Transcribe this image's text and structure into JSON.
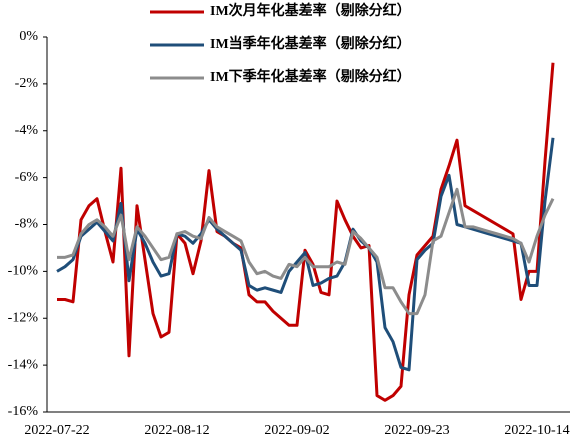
{
  "chart_data": {
    "type": "line",
    "categories": [
      "2022-07-22",
      null,
      null,
      null,
      null,
      null,
      null,
      null,
      null,
      null,
      null,
      null,
      null,
      null,
      null,
      "2022-08-12",
      null,
      null,
      null,
      null,
      null,
      null,
      null,
      null,
      null,
      null,
      null,
      null,
      null,
      null,
      "2022-09-02",
      null,
      null,
      null,
      null,
      null,
      null,
      null,
      null,
      null,
      null,
      null,
      null,
      null,
      null,
      "2022-09-23",
      null,
      null,
      null,
      null,
      null,
      null,
      null,
      null,
      null,
      null,
      null,
      null,
      null,
      null,
      "2022-10-14",
      null,
      null
    ],
    "series": [
      {
        "name": "IM次月年化基差率（剔除分红）",
        "color": "#c00000",
        "values": [
          -11.2,
          -11.2,
          -11.3,
          -7.8,
          -7.2,
          -6.9,
          -8.3,
          -9.6,
          -5.6,
          -13.6,
          -7.2,
          -9.5,
          -11.8,
          -12.8,
          -12.6,
          -8.4,
          -8.8,
          -10.1,
          -8.7,
          -5.7,
          -8.3,
          -8.5,
          -8.8,
          -9.0,
          -11.0,
          -11.3,
          -11.3,
          -11.7,
          -12.0,
          -12.3,
          -12.3,
          -9.1,
          -9.7,
          -10.9,
          -11.0,
          -7.0,
          -7.8,
          -8.5,
          -9.0,
          -8.9,
          -15.3,
          -15.5,
          -15.3,
          -14.9,
          -11.0,
          -9.3,
          -8.9,
          -8.5,
          -6.5,
          -5.5,
          -4.4,
          -7.2,
          -7.4,
          -7.6,
          -7.8,
          -8.0,
          -8.2,
          -8.4,
          -11.2,
          -10.0,
          -10.0,
          -5.3,
          -1.1
        ]
      },
      {
        "name": "IM当季年化基差率（剔除分红）",
        "color": "#1f4e79",
        "values": [
          -10.0,
          -9.8,
          -9.5,
          -8.5,
          -8.2,
          -7.9,
          -8.3,
          -8.7,
          -7.1,
          -10.4,
          -8.2,
          -8.8,
          -9.6,
          -10.2,
          -10.1,
          -8.4,
          -8.5,
          -8.8,
          -8.4,
          -7.8,
          -8.2,
          -8.5,
          -8.8,
          -9.1,
          -10.6,
          -10.8,
          -10.7,
          -10.8,
          -10.9,
          -10.0,
          -9.6,
          -9.2,
          -10.6,
          -10.5,
          -10.3,
          -10.2,
          -9.6,
          -8.2,
          -8.7,
          -9.0,
          -9.6,
          -12.4,
          -13.0,
          -14.1,
          -14.2,
          -9.5,
          -9.1,
          -8.8,
          -6.8,
          -5.9,
          -8.0,
          -8.1,
          -8.2,
          -8.3,
          -8.4,
          -8.5,
          -8.6,
          -8.7,
          -8.8,
          -10.6,
          -10.6,
          -7.0,
          -4.3
        ]
      },
      {
        "name": "IM下季年化基差率（剔除分红）",
        "color": "#8c8c8c",
        "values": [
          -9.4,
          -9.4,
          -9.3,
          -8.4,
          -8.0,
          -7.8,
          -8.1,
          -8.5,
          -7.6,
          -9.5,
          -8.1,
          -8.5,
          -9.0,
          -9.5,
          -9.4,
          -8.4,
          -8.3,
          -8.5,
          -8.6,
          -7.7,
          -8.1,
          -8.3,
          -8.5,
          -8.7,
          -9.6,
          -10.1,
          -10.0,
          -10.2,
          -10.3,
          -9.7,
          -9.8,
          -9.4,
          -9.8,
          -9.8,
          -9.8,
          -9.6,
          -9.7,
          -8.3,
          -8.6,
          -9.0,
          -9.4,
          -10.7,
          -10.7,
          -11.3,
          -11.8,
          -11.8,
          -11.0,
          -8.7,
          -8.5,
          -7.5,
          -6.5,
          -8.1,
          -8.1,
          -8.2,
          -8.3,
          -8.4,
          -8.5,
          -8.6,
          -8.8,
          -9.6,
          -8.5,
          -7.6,
          -6.9
        ]
      }
    ],
    "ylim": [
      -16,
      0
    ],
    "yticks": [
      {
        "value": 0,
        "label": "0%"
      },
      {
        "value": -2,
        "label": "-2%"
      },
      {
        "value": -4,
        "label": "-4%"
      },
      {
        "value": -6,
        "label": "-6%"
      },
      {
        "value": -8,
        "label": "-8%"
      },
      {
        "value": -10,
        "label": "-10%"
      },
      {
        "value": -12,
        "label": "-12%"
      },
      {
        "value": -14,
        "label": "-14%"
      },
      {
        "value": -16,
        "label": "-16%"
      }
    ],
    "grid": false,
    "legend": "top"
  }
}
